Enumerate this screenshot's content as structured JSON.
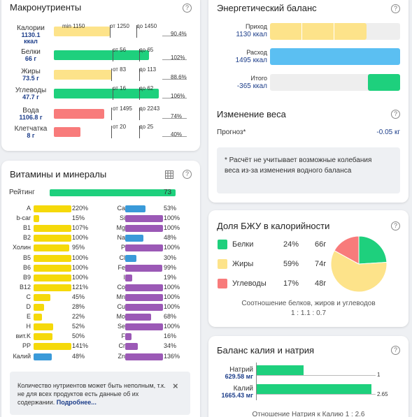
{
  "macros": {
    "title": "Макронутриенты",
    "help": "?",
    "rows": [
      {
        "name": "Калории",
        "value": "1130.1",
        "unit": "ккал",
        "l1": "min 1150",
        "l2": "от 1250",
        "l3": "до 1450",
        "pct": "90.4%",
        "fill_pct": 0.5,
        "color": "#fde38a"
      },
      {
        "name": "Белки",
        "value": "66 г",
        "unit": "",
        "l1": "",
        "l2": "от 56",
        "l3": "до 65",
        "pct": "102%",
        "fill_pct": 0.85,
        "color": "#1ed07d"
      },
      {
        "name": "Жиры",
        "value": "73.5 г",
        "unit": "",
        "l1": "",
        "l2": "от 83",
        "l3": "до 113",
        "pct": "88.6%",
        "fill_pct": 0.52,
        "color": "#fde38a"
      },
      {
        "name": "Углеводы",
        "value": "47.7 г",
        "unit": "",
        "l1": "",
        "l2": "от 16",
        "l3": "до 62",
        "pct": "106%",
        "fill_pct": 0.94,
        "color": "#1ed07d"
      },
      {
        "name": "Вода",
        "value": "1106.8 г",
        "unit": "",
        "l1": "",
        "l2": "от 1495",
        "l3": "до 2243",
        "pct": "74%",
        "fill_pct": 0.45,
        "color": "#f87b7b"
      },
      {
        "name": "Клетчатка",
        "value": "8 г",
        "unit": "",
        "l1": "",
        "l2": "от 20",
        "l3": "до 25",
        "pct": "40%",
        "fill_pct": 0.24,
        "color": "#f87b7b"
      }
    ]
  },
  "vitamins": {
    "title": "Витамины и минералы",
    "rating_label": "Рейтинг",
    "rating_value": "73",
    "rating_fraction": 0.73,
    "left": [
      {
        "name": "A",
        "pct": "220%",
        "frac": 1.0,
        "color": "#f5d90a"
      },
      {
        "name": "b-car",
        "pct": "15%",
        "frac": 0.15,
        "color": "#f5d90a"
      },
      {
        "name": "B1",
        "pct": "107%",
        "frac": 1.0,
        "color": "#f5d90a"
      },
      {
        "name": "B2",
        "pct": "100%",
        "frac": 1.0,
        "color": "#f5d90a"
      },
      {
        "name": "Холин",
        "pct": "95%",
        "frac": 0.95,
        "color": "#f5d90a"
      },
      {
        "name": "B5",
        "pct": "100%",
        "frac": 1.0,
        "color": "#f5d90a"
      },
      {
        "name": "B6",
        "pct": "100%",
        "frac": 1.0,
        "color": "#f5d90a"
      },
      {
        "name": "B9",
        "pct": "100%",
        "frac": 1.0,
        "color": "#f5d90a"
      },
      {
        "name": "B12",
        "pct": "121%",
        "frac": 1.0,
        "color": "#f5d90a"
      },
      {
        "name": "C",
        "pct": "45%",
        "frac": 0.45,
        "color": "#f5d90a"
      },
      {
        "name": "D",
        "pct": "28%",
        "frac": 0.28,
        "color": "#f5d90a"
      },
      {
        "name": "E",
        "pct": "22%",
        "frac": 0.22,
        "color": "#f5d90a"
      },
      {
        "name": "H",
        "pct": "52%",
        "frac": 0.52,
        "color": "#f5d90a"
      },
      {
        "name": "вит.K",
        "pct": "50%",
        "frac": 0.5,
        "color": "#f5d90a"
      },
      {
        "name": "PP",
        "pct": "141%",
        "frac": 1.0,
        "color": "#f5d90a"
      },
      {
        "name": "Калий",
        "pct": "48%",
        "frac": 0.48,
        "color": "#3a9ad9"
      }
    ],
    "right": [
      {
        "name": "Ca",
        "pct": "53%",
        "frac": 0.53,
        "color": "#3a9ad9"
      },
      {
        "name": "Si",
        "pct": "100%",
        "frac": 1.0,
        "color": "#9b59b6"
      },
      {
        "name": "Mg",
        "pct": "100%",
        "frac": 1.0,
        "color": "#9b59b6"
      },
      {
        "name": "Na",
        "pct": "48%",
        "frac": 0.48,
        "color": "#3a9ad9"
      },
      {
        "name": "P",
        "pct": "100%",
        "frac": 1.0,
        "color": "#9b59b6"
      },
      {
        "name": "Cl",
        "pct": "30%",
        "frac": 0.3,
        "color": "#3a9ad9"
      },
      {
        "name": "Fe",
        "pct": "99%",
        "frac": 0.99,
        "color": "#9b59b6"
      },
      {
        "name": "I",
        "pct": "19%",
        "frac": 0.19,
        "color": "#9b59b6"
      },
      {
        "name": "Co",
        "pct": "100%",
        "frac": 1.0,
        "color": "#9b59b6"
      },
      {
        "name": "Mn",
        "pct": "100%",
        "frac": 1.0,
        "color": "#9b59b6"
      },
      {
        "name": "Cu",
        "pct": "100%",
        "frac": 1.0,
        "color": "#9b59b6"
      },
      {
        "name": "Mo",
        "pct": "68%",
        "frac": 0.68,
        "color": "#9b59b6"
      },
      {
        "name": "Se",
        "pct": "100%",
        "frac": 1.0,
        "color": "#9b59b6"
      },
      {
        "name": "F",
        "pct": "16%",
        "frac": 0.16,
        "color": "#9b59b6"
      },
      {
        "name": "Cr",
        "pct": "34%",
        "frac": 0.34,
        "color": "#9b59b6"
      },
      {
        "name": "Zn",
        "pct": "136%",
        "frac": 1.0,
        "color": "#9b59b6"
      }
    ],
    "note": "Количество нутриентов может быть неполным, т.к. не для всех продуктов есть данные об их содержании.",
    "note_link": "Подробнее..."
  },
  "energy": {
    "title": "Энергетический баланс",
    "income_label": "Приход",
    "income_value": "1130 ккал",
    "income_fraction": 0.74,
    "expense_label": "Расход",
    "expense_value": "1495 ккал",
    "total_label": "Итого",
    "total_value": "-365 ккал"
  },
  "weight": {
    "title": "Изменение веса",
    "forecast_label": "Прогноз*",
    "forecast_value": "-0.05 кг",
    "note": "* Расчёт не учитывает возможные колебания веса из-за изменения водного баланса"
  },
  "bju": {
    "title": "Доля БЖУ в калорийности",
    "rows": [
      {
        "name": "Белки",
        "pct": "24%",
        "grams": "66г",
        "color": "#1ed07d"
      },
      {
        "name": "Жиры",
        "pct": "59%",
        "grams": "74г",
        "color": "#fde38a"
      },
      {
        "name": "Углеводы",
        "pct": "17%",
        "grams": "48г",
        "color": "#f87b7b"
      }
    ],
    "ratio_label": "Соотношение белков, жиров и углеводов",
    "ratio": "1 : 1.1 : 0.7"
  },
  "potassium": {
    "title": "Баланс калия и натрия",
    "sodium_label": "Натрий",
    "sodium_value": "629.58 мг",
    "sodium_ratio": "1",
    "potassium_label": "Калий",
    "potassium_value": "1665.43 мг",
    "potassium_ratio": "2.65",
    "ratio_text": "Отношение Натрия к Калию  1 : 2.6"
  }
}
